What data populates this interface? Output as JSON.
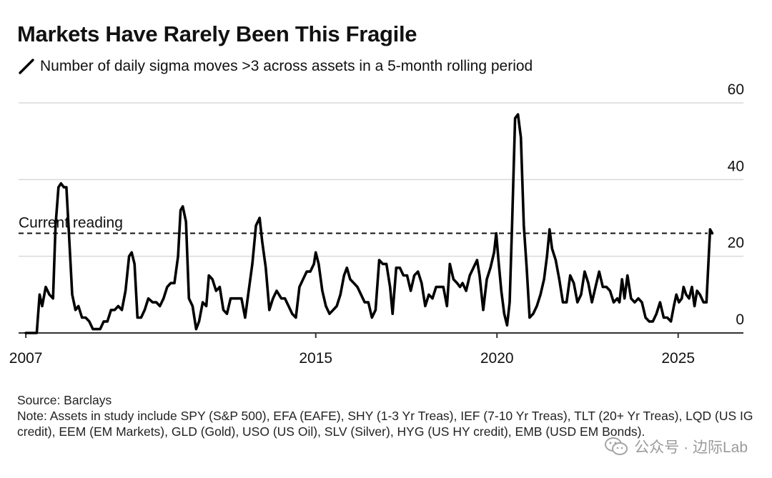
{
  "title": "Markets Have Rarely Been This Fragile",
  "subtitle": "Number of daily sigma moves >3 across assets in a 5-month rolling period",
  "source": "Source: Barclays",
  "note": "Note: Assets in study include SPY (S&P 500), EFA (EAFE), SHY (1-3 Yr Treas), IEF (7-10 Yr Treas), TLT (20+ Yr Treas), LQD (US IG credit), EEM (EM Markets), GLD (Gold), USO (US Oil), SLV (Silver), HYG (US HY credit), EMB (USD EM Bonds).",
  "watermark": "公众号 · 边际Lab",
  "colors": {
    "line": "#000000",
    "grid": "#d9d9d9",
    "text": "#111111",
    "watermark": "#9a9a9a"
  },
  "chart_data": {
    "type": "line",
    "xlabel": "",
    "ylabel": "",
    "x_ticks": [
      2007,
      2015,
      2020,
      2025
    ],
    "y_ticks": [
      0,
      20,
      40,
      60
    ],
    "xlim": [
      2006.8,
      2026.8
    ],
    "ylim": [
      0,
      60
    ],
    "grid": "horizontal",
    "y_axis_side": "right",
    "reference_line": {
      "value": 26,
      "label": "Current reading",
      "style": "dashed"
    },
    "series": [
      {
        "name": "",
        "points": [
          [
            2007.0,
            0
          ],
          [
            2007.3,
            0
          ],
          [
            2007.38,
            10
          ],
          [
            2007.45,
            7
          ],
          [
            2007.55,
            12
          ],
          [
            2007.65,
            10
          ],
          [
            2007.75,
            9
          ],
          [
            2007.82,
            28
          ],
          [
            2007.9,
            38
          ],
          [
            2007.97,
            39
          ],
          [
            2008.05,
            38
          ],
          [
            2008.12,
            38
          ],
          [
            2008.2,
            24
          ],
          [
            2008.28,
            10
          ],
          [
            2008.37,
            6
          ],
          [
            2008.45,
            7
          ],
          [
            2008.55,
            4
          ],
          [
            2008.65,
            4
          ],
          [
            2008.75,
            3
          ],
          [
            2008.85,
            1
          ],
          [
            2008.95,
            1
          ],
          [
            2009.05,
            1
          ],
          [
            2009.15,
            3
          ],
          [
            2009.25,
            3
          ],
          [
            2009.35,
            6
          ],
          [
            2009.45,
            6
          ],
          [
            2009.55,
            7
          ],
          [
            2009.65,
            6
          ],
          [
            2009.75,
            11
          ],
          [
            2009.85,
            20
          ],
          [
            2009.92,
            21
          ],
          [
            2010.0,
            18
          ],
          [
            2010.08,
            4
          ],
          [
            2010.18,
            4
          ],
          [
            2010.28,
            6
          ],
          [
            2010.38,
            9
          ],
          [
            2010.5,
            8
          ],
          [
            2010.6,
            8
          ],
          [
            2010.7,
            7
          ],
          [
            2010.8,
            9
          ],
          [
            2010.9,
            12
          ],
          [
            2011.0,
            13
          ],
          [
            2011.1,
            13
          ],
          [
            2011.2,
            20
          ],
          [
            2011.27,
            32
          ],
          [
            2011.33,
            33
          ],
          [
            2011.42,
            29
          ],
          [
            2011.5,
            9
          ],
          [
            2011.6,
            7
          ],
          [
            2011.7,
            1
          ],
          [
            2011.78,
            3
          ],
          [
            2011.88,
            8
          ],
          [
            2011.98,
            7
          ],
          [
            2012.05,
            15
          ],
          [
            2012.15,
            14
          ],
          [
            2012.25,
            11
          ],
          [
            2012.35,
            12
          ],
          [
            2012.45,
            6
          ],
          [
            2012.55,
            5
          ],
          [
            2012.65,
            9
          ],
          [
            2012.75,
            9
          ],
          [
            2012.85,
            9
          ],
          [
            2012.95,
            9
          ],
          [
            2013.05,
            4
          ],
          [
            2013.15,
            11
          ],
          [
            2013.25,
            18
          ],
          [
            2013.35,
            28
          ],
          [
            2013.45,
            30
          ],
          [
            2013.52,
            24
          ],
          [
            2013.62,
            17
          ],
          [
            2013.72,
            6
          ],
          [
            2013.82,
            9
          ],
          [
            2013.92,
            11
          ],
          [
            2014.05,
            9
          ],
          [
            2014.15,
            9
          ],
          [
            2014.25,
            7
          ],
          [
            2014.35,
            5
          ],
          [
            2014.45,
            4
          ],
          [
            2014.55,
            12
          ],
          [
            2014.65,
            14
          ],
          [
            2014.75,
            16
          ],
          [
            2014.85,
            16
          ],
          [
            2014.95,
            18
          ],
          [
            2015.0,
            21
          ],
          [
            2015.08,
            18
          ],
          [
            2015.18,
            11
          ],
          [
            2015.28,
            7
          ],
          [
            2015.38,
            5
          ],
          [
            2015.48,
            6
          ],
          [
            2015.58,
            7
          ],
          [
            2015.68,
            10
          ],
          [
            2015.78,
            15
          ],
          [
            2015.86,
            17
          ],
          [
            2015.95,
            14
          ],
          [
            2016.05,
            13
          ],
          [
            2016.15,
            12
          ],
          [
            2016.25,
            10
          ],
          [
            2016.35,
            8
          ],
          [
            2016.45,
            8
          ],
          [
            2016.55,
            4
          ],
          [
            2016.65,
            6
          ],
          [
            2016.75,
            19
          ],
          [
            2016.85,
            18
          ],
          [
            2016.95,
            18
          ],
          [
            2017.05,
            12
          ],
          [
            2017.12,
            5
          ],
          [
            2017.22,
            17
          ],
          [
            2017.32,
            17
          ],
          [
            2017.42,
            15
          ],
          [
            2017.52,
            15
          ],
          [
            2017.62,
            11
          ],
          [
            2017.72,
            15
          ],
          [
            2017.82,
            16
          ],
          [
            2017.92,
            13
          ],
          [
            2018.02,
            7
          ],
          [
            2018.12,
            10
          ],
          [
            2018.22,
            9
          ],
          [
            2018.32,
            12
          ],
          [
            2018.42,
            12
          ],
          [
            2018.52,
            12
          ],
          [
            2018.62,
            7
          ],
          [
            2018.7,
            18
          ],
          [
            2018.8,
            14
          ],
          [
            2018.9,
            13
          ],
          [
            2018.98,
            12
          ],
          [
            2019.05,
            13
          ],
          [
            2019.15,
            11
          ],
          [
            2019.25,
            15
          ],
          [
            2019.35,
            17
          ],
          [
            2019.45,
            19
          ],
          [
            2019.52,
            15
          ],
          [
            2019.62,
            6
          ],
          [
            2019.72,
            14
          ],
          [
            2019.82,
            17
          ],
          [
            2019.92,
            21
          ],
          [
            2019.98,
            26
          ],
          [
            2020.05,
            18
          ],
          [
            2020.12,
            11
          ],
          [
            2020.2,
            5
          ],
          [
            2020.28,
            2
          ],
          [
            2020.35,
            8
          ],
          [
            2020.42,
            29
          ],
          [
            2020.5,
            56
          ],
          [
            2020.58,
            57
          ],
          [
            2020.66,
            51
          ],
          [
            2020.74,
            28
          ],
          [
            2020.82,
            17
          ],
          [
            2020.9,
            4
          ],
          [
            2021.0,
            5
          ],
          [
            2021.1,
            7
          ],
          [
            2021.2,
            10
          ],
          [
            2021.3,
            14
          ],
          [
            2021.38,
            20
          ],
          [
            2021.45,
            27
          ],
          [
            2021.52,
            22
          ],
          [
            2021.62,
            19
          ],
          [
            2021.72,
            14
          ],
          [
            2021.82,
            8
          ],
          [
            2021.92,
            8
          ],
          [
            2022.02,
            15
          ],
          [
            2022.12,
            13
          ],
          [
            2022.22,
            8
          ],
          [
            2022.32,
            10
          ],
          [
            2022.42,
            16
          ],
          [
            2022.52,
            13
          ],
          [
            2022.62,
            8
          ],
          [
            2022.72,
            12
          ],
          [
            2022.82,
            16
          ],
          [
            2022.92,
            12
          ],
          [
            2023.02,
            12
          ],
          [
            2023.12,
            11
          ],
          [
            2023.22,
            8
          ],
          [
            2023.32,
            9
          ],
          [
            2023.38,
            8
          ],
          [
            2023.45,
            14
          ],
          [
            2023.52,
            9
          ],
          [
            2023.6,
            15
          ],
          [
            2023.7,
            9
          ],
          [
            2023.8,
            8
          ],
          [
            2023.9,
            9
          ],
          [
            2024.0,
            8
          ],
          [
            2024.1,
            4
          ],
          [
            2024.2,
            3
          ],
          [
            2024.3,
            3
          ],
          [
            2024.4,
            5
          ],
          [
            2024.5,
            8
          ],
          [
            2024.6,
            4
          ],
          [
            2024.7,
            4
          ],
          [
            2024.8,
            3
          ],
          [
            2024.88,
            7
          ],
          [
            2024.95,
            10
          ],
          [
            2025.02,
            8
          ],
          [
            2025.1,
            9
          ],
          [
            2025.15,
            12
          ],
          [
            2025.22,
            10
          ],
          [
            2025.3,
            9
          ],
          [
            2025.38,
            12
          ],
          [
            2025.45,
            7
          ],
          [
            2025.52,
            11
          ],
          [
            2025.6,
            10
          ],
          [
            2025.7,
            8
          ],
          [
            2025.78,
            8
          ],
          [
            2025.88,
            27
          ],
          [
            2025.94,
            26
          ]
        ]
      }
    ]
  }
}
